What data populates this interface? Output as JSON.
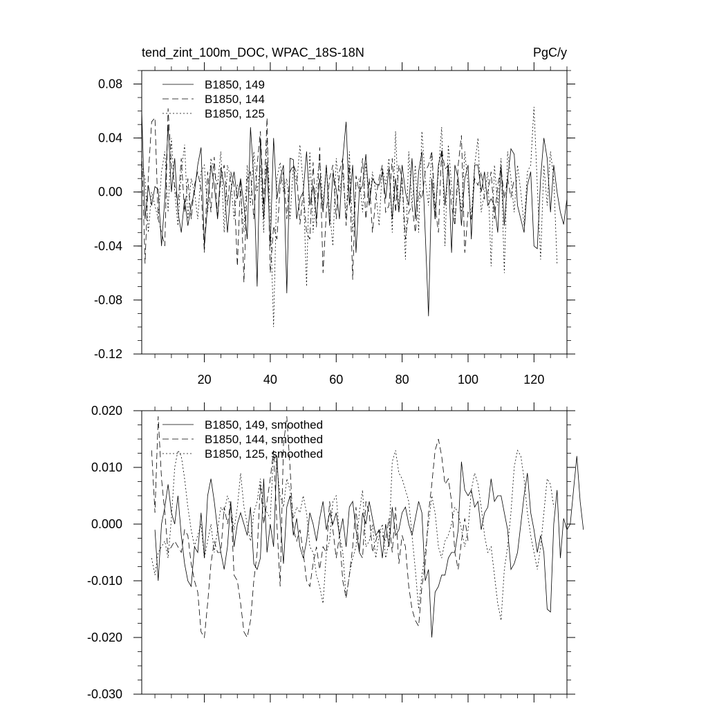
{
  "chart_data": [
    {
      "type": "line",
      "title": "tend_zint_100m_DOC, WPAC_18S-18N",
      "units": "PgC/y",
      "xlim": [
        1,
        130
      ],
      "ylim": [
        -0.12,
        0.09
      ],
      "xticks": [
        20,
        40,
        60,
        80,
        100,
        120
      ],
      "xtick_labels": [
        "20",
        "40",
        "60",
        "80",
        "100",
        "120"
      ],
      "yticks": [
        0.08,
        0.04,
        0.0,
        -0.04,
        -0.08,
        -0.12
      ],
      "ytick_labels": [
        "0.08",
        "0.04",
        "0.00",
        "-0.04",
        "-0.08",
        "-0.12"
      ],
      "legend_position": "top-left",
      "series": [
        {
          "name": "B1850, 149",
          "style": "solid",
          "x_start": 1,
          "values": [
            0.06,
            -0.02,
            0.005,
            -0.01,
            0.004,
            0.002,
            -0.04,
            -0.005,
            0.05,
            0.0,
            0.025,
            -0.015,
            -0.03,
            -0.005,
            -0.025,
            -0.01,
            0.0,
            0.02,
            0.033,
            -0.04,
            -0.01,
            0.02,
            0.005,
            -0.02,
            0.018,
            0.005,
            -0.03,
            0.0,
            0.015,
            -0.005,
            0.01,
            -0.01,
            -0.035,
            0.048,
            0.01,
            -0.07,
            0.04,
            -0.02,
            0.022,
            -0.04,
            0.04,
            -0.005,
            0.01,
            0.02,
            -0.075,
            0.025,
            0.024,
            -0.02,
            -0.005,
            0.0,
            0.03,
            -0.01,
            0.005,
            -0.02,
            0.01,
            -0.015,
            0.02,
            -0.025,
            0.014,
            0.002,
            -0.02,
            0.025,
            0.052,
            -0.01,
            0.02,
            -0.045,
            0.0,
            0.005,
            0.028,
            -0.01,
            0.01,
            0.006,
            0.005,
            0.015,
            -0.005,
            0.018,
            -0.02,
            0.01,
            -0.015,
            0.02,
            0.0,
            -0.01,
            0.025,
            -0.02,
            0.015,
            0.03,
            -0.03,
            -0.092,
            0.01,
            -0.02,
            0.02,
            0.03,
            -0.01,
            0.02,
            -0.045,
            0.02,
            0.01,
            -0.025,
            0.01,
            0.02,
            -0.035,
            0.02,
            0.02,
            0.0,
            0.015,
            -0.01,
            -0.005,
            -0.01,
            -0.03,
            0.02,
            -0.025,
            0.01,
            0.032,
            0.028,
            -0.01,
            -0.02,
            -0.03,
            0.005,
            0.015,
            -0.04,
            -0.042,
            0.01,
            0.04,
            0.025,
            -0.015,
            0.02,
            0.0,
            -0.015,
            -0.024,
            -0.005
          ]
        },
        {
          "name": "B1850, 144",
          "style": "dashed",
          "x_start": 1,
          "values": [
            0.03,
            -0.053,
            0.012,
            0.052,
            0.055,
            -0.02,
            -0.03,
            -0.04,
            0.062,
            0.02,
            0.005,
            -0.01,
            0.025,
            -0.015,
            0.01,
            -0.02,
            0.005,
            0.015,
            0.002,
            -0.045,
            0.015,
            -0.015,
            0.026,
            -0.02,
            0.01,
            0.02,
            -0.01,
            0.015,
            0.005,
            -0.055,
            0.01,
            -0.067,
            0.01,
            0.015,
            -0.02,
            0.02,
            0.045,
            -0.01,
            0.055,
            -0.06,
            -0.025,
            -0.035,
            0.005,
            0.015,
            -0.02,
            0.015,
            0.02,
            0.014,
            -0.024,
            0.0,
            -0.03,
            -0.035,
            0.022,
            -0.026,
            0.033,
            -0.06,
            -0.015,
            0.01,
            0.02,
            -0.02,
            0.015,
            0.025,
            -0.025,
            0.02,
            -0.065,
            0.012,
            0.0,
            0.025,
            -0.02,
            0.01,
            -0.03,
            -0.005,
            0.01,
            0.02,
            -0.015,
            -0.01,
            0.025,
            -0.015,
            0.02,
            0.01,
            -0.035,
            -0.015,
            -0.01,
            -0.03,
            0.0,
            -0.005,
            0.015,
            0.02,
            0.03,
            -0.01,
            -0.03,
            0.032,
            0.017,
            0.02,
            -0.01,
            -0.025,
            0.02,
            0.042,
            -0.045,
            -0.015,
            -0.02,
            0.01,
            0.005,
            0.015,
            -0.005,
            0.0,
            0.015,
            -0.02,
            0.005,
            0.018,
            -0.005,
            0.01,
            -0.004,
            0.01
          ]
        },
        {
          "name": "B1850, 125",
          "style": "dotted",
          "x_start": 1,
          "values": [
            0.02,
            0.01,
            -0.03,
            0.0,
            -0.01,
            -0.02,
            0.015,
            0.03,
            -0.015,
            0.04,
            0.0,
            -0.025,
            0.015,
            0.035,
            -0.02,
            0.01,
            0.0,
            -0.02,
            0.015,
            0.02,
            -0.015,
            0.025,
            0.015,
            0.005,
            0.03,
            -0.03,
            0.02,
            0.01,
            -0.02,
            0.005,
            0.0,
            -0.03,
            0.02,
            -0.01,
            0.03,
            0.0,
            0.02,
            -0.03,
            0.04,
            -0.015,
            -0.1,
            0.01,
            0.022,
            0.0,
            0.01,
            -0.02,
            0.02,
            0.005,
            0.035,
            0.005,
            -0.07,
            0.03,
            -0.03,
            0.005,
            0.025,
            -0.01,
            0.02,
            -0.015,
            -0.04,
            0.025,
            0.0,
            0.015,
            -0.02,
            0.03,
            -0.03,
            0.005,
            0.01,
            -0.015,
            0.022,
            -0.01,
            0.015,
            0.0,
            -0.025,
            0.018,
            0.005,
            0.025,
            -0.03,
            0.045,
            -0.015,
            0.01,
            -0.05,
            0.03,
            -0.01,
            0.02,
            -0.03,
            0.045,
            0.01,
            -0.01,
            0.03,
            -0.02,
            0.015,
            0.048,
            -0.04,
            0.035,
            0.005,
            -0.02,
            0.01,
            -0.015,
            0.03,
            0.005,
            -0.02,
            0.02,
            0.04,
            -0.015,
            0.0,
            0.015,
            -0.055,
            0.02,
            -0.01,
            0.025,
            -0.06,
            0.03,
            0.01,
            -0.015,
            0.02,
            0.0,
            -0.025,
            0.015,
            0.02,
            0.063,
            0.005,
            -0.05,
            0.02,
            -0.01,
            0.03,
            0.01,
            -0.053
          ]
        }
      ]
    },
    {
      "type": "line",
      "xlim": [
        1,
        130
      ],
      "ylim": [
        -0.03,
        0.02
      ],
      "xticks": [
        20,
        40,
        60,
        80,
        100,
        120
      ],
      "yticks": [
        0.02,
        0.01,
        0.0,
        -0.01,
        -0.02,
        -0.03
      ],
      "ytick_labels": [
        "0.020",
        "0.010",
        "0.000",
        "-0.010",
        "-0.020",
        "-0.030"
      ],
      "legend_position": "top-left",
      "series": [
        {
          "name": "B1850, 149, smoothed",
          "style": "solid",
          "x_start": 5,
          "values": [
            -0.001,
            -0.01,
            0.0,
            0.003,
            0.007,
            0.002,
            0.0,
            0.005,
            -0.002,
            -0.007,
            -0.01,
            -0.011,
            -0.004,
            -0.005,
            0.002,
            -0.006,
            0.005,
            0.008,
            0.004,
            -0.001,
            -0.005,
            -0.008,
            -0.004,
            0.004,
            -0.004,
            0.0,
            0.002,
            0.0,
            -0.002,
            0.003,
            -0.007,
            -0.008,
            -0.006,
            0.008,
            -0.005,
            0.0,
            -0.004,
            0.012,
            0.001,
            -0.007,
            0.003,
            0.005,
            -0.002,
            0.001,
            -0.004,
            -0.006,
            -0.003,
            0.002,
            0.0,
            -0.003,
            0.001,
            0.004,
            -0.001,
            0.002,
            0.0,
            0.002,
            -0.002,
            0.001,
            -0.004,
            0.003,
            0.004,
            -0.001,
            -0.005,
            0.002,
            0.0,
            0.004,
            0.001,
            -0.002,
            -0.001,
            -0.006,
            0.0,
            -0.004,
            0.003,
            -0.002,
            -0.001,
            0.002,
            0.003,
            0.0,
            -0.002,
            0.001,
            0.004,
            0.002,
            -0.01,
            -0.008,
            -0.02,
            -0.012,
            -0.011,
            -0.009,
            -0.009,
            -0.006,
            -0.005,
            -0.005,
            -0.001,
            0.011,
            0.006,
            0.005,
            0.006,
            0.003,
            0.004,
            -0.001,
            0.002,
            0.003,
            0.008,
            0.004,
            0.005,
            0.005,
            0.002,
            -0.001,
            -0.008,
            -0.007,
            -0.005,
            0.0,
            0.005,
            0.009,
            0.002,
            -0.001,
            -0.005,
            -0.002,
            -0.005,
            -0.015,
            -0.0155,
            0.0,
            0.006,
            -0.006,
            0.001,
            -0.001,
            0.0,
            0.006,
            0.012,
            0.004,
            -0.001
          ]
        },
        {
          "name": "B1850, 144, smoothed",
          "style": "dashed",
          "x_start": 4,
          "values": [
            0.013,
            0.002,
            0.019,
            0.008,
            0.002,
            -0.005,
            -0.004,
            -0.003,
            -0.004,
            -0.005,
            -0.001,
            -0.002,
            -0.007,
            -0.01,
            -0.012,
            -0.019,
            -0.02,
            -0.014,
            -0.007,
            -0.003,
            -0.005,
            -0.005,
            0.003,
            0.0,
            0.004,
            -0.009,
            -0.01,
            -0.014,
            -0.019,
            -0.02,
            -0.017,
            -0.01,
            -0.005,
            0.007,
            0.0,
            0.004,
            0.008,
            0.013,
            0.0,
            -0.011,
            0.014,
            0.019,
            0.01,
            -0.001,
            -0.003,
            -0.001,
            -0.005,
            -0.01,
            -0.011,
            -0.007,
            -0.004,
            -0.008,
            -0.004,
            -0.005,
            0.004,
            -0.001,
            -0.006,
            -0.002,
            -0.01,
            -0.013,
            -0.009,
            -0.004,
            0.003,
            -0.005,
            -0.006,
            0.004,
            0.002,
            -0.005,
            -0.003,
            -0.001,
            -0.002,
            -0.003,
            0.001,
            -0.005,
            0.003,
            -0.007,
            -0.002,
            -0.004,
            -0.011,
            -0.015,
            -0.017,
            -0.018,
            -0.011,
            -0.007,
            0.002,
            0.007,
            0.013,
            0.015,
            0.012,
            0.007,
            0.008,
            0.004,
            -0.005,
            -0.008,
            -0.003,
            0.001,
            -0.003
          ]
        },
        {
          "name": "B1850, 125, smoothed",
          "style": "dotted",
          "x_start": 4,
          "values": [
            -0.006,
            -0.009,
            -0.005,
            -0.004,
            -0.003,
            -0.006,
            0.001,
            0.01,
            0.013,
            0.012,
            0.008,
            0.003,
            -0.001,
            -0.004,
            -0.002,
            0.0,
            -0.006,
            -0.003,
            0.0,
            -0.005,
            -0.001,
            0.003,
            0.002,
            0.005,
            0.003,
            -0.001,
            0.003,
            0.009,
            0.003,
            0.0,
            -0.003,
            0.002,
            0.004,
            0.008,
            0.003,
            0.002,
            0.001,
            0.013,
            0.01,
            0.005,
            0.003,
            0.008,
            0.006,
            0.001,
            0.003,
            0.002,
            0.005,
            0.002,
            -0.004,
            -0.005,
            -0.009,
            -0.011,
            -0.014,
            -0.005,
            -0.003,
            0.004,
            0.005,
            -0.002,
            -0.005,
            -0.013,
            -0.009,
            -0.006,
            -0.004,
            0.002,
            0.006,
            -0.004,
            -0.003,
            0.0,
            -0.006,
            -0.002,
            0.0,
            -0.006,
            -0.003,
            0.011,
            0.013,
            0.009,
            0.008,
            0.006,
            0.004,
            -0.002,
            -0.008,
            -0.015,
            -0.009,
            -0.005,
            0.0,
            0.005,
            0.002,
            -0.004,
            -0.006,
            -0.003,
            -0.002,
            0.0,
            0.003,
            0.002,
            -0.001,
            -0.004,
            -0.001,
            0.006,
            0.009,
            0.007,
            0.003,
            -0.002,
            -0.005,
            -0.004,
            -0.009,
            -0.014,
            -0.017,
            -0.008,
            -0.004,
            0.002,
            0.01,
            0.013,
            0.012,
            0.008,
            0.002,
            -0.002,
            -0.005,
            -0.008,
            -0.004,
            0.002,
            0.008,
            0.007,
            0.003
          ]
        }
      ]
    }
  ]
}
